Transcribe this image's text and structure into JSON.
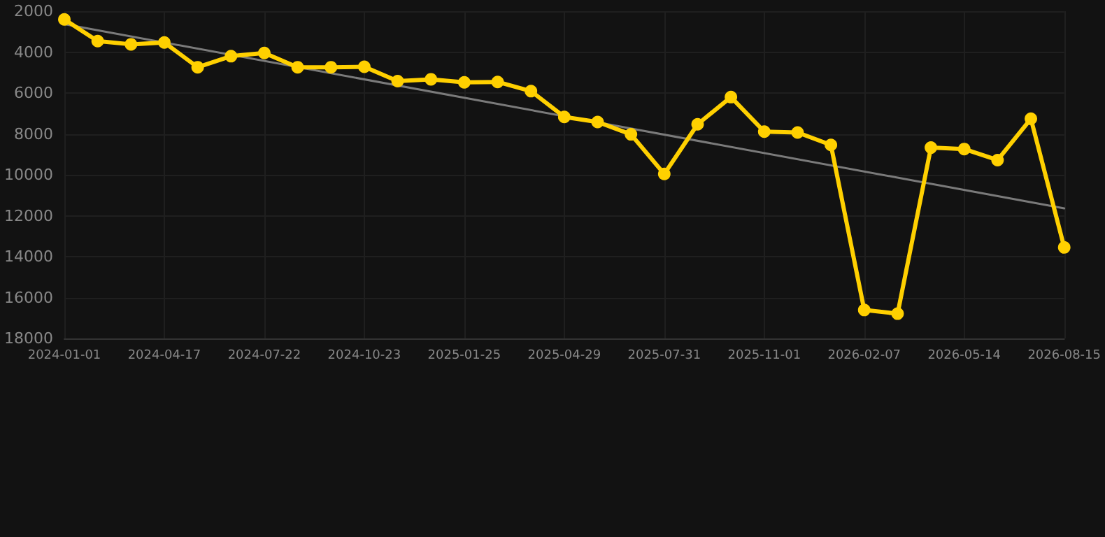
{
  "chart_data": {
    "type": "line",
    "categories": [
      "2024-01-01",
      null,
      null,
      "2024-04-17",
      null,
      null,
      "2024-07-22",
      null,
      null,
      "2024-10-23",
      null,
      null,
      "2025-01-25",
      null,
      null,
      "2025-04-29",
      null,
      null,
      "2025-07-31",
      null,
      null,
      "2025-11-01",
      null,
      null,
      "2026-02-07",
      null,
      null,
      "2026-05-14",
      null,
      null,
      "2026-08-15"
    ],
    "series": [
      {
        "color": "#ffd000",
        "marker": "circle",
        "values": [
          2400,
          3460,
          3620,
          3530,
          4740,
          4200,
          4040,
          4740,
          4740,
          4720,
          5420,
          5330,
          5480,
          5460,
          5910,
          7170,
          7420,
          8020,
          9960,
          7530,
          6200,
          7890,
          7930,
          8540,
          16610,
          16790,
          8670,
          8740,
          9280,
          7260,
          13550
        ]
      },
      {
        "type": "line",
        "color": "#7a7a7a",
        "marker": "none",
        "values": [
          2630,
          null,
          null,
          null,
          null,
          null,
          null,
          null,
          null,
          null,
          null,
          null,
          null,
          null,
          null,
          null,
          null,
          null,
          null,
          null,
          null,
          null,
          null,
          null,
          null,
          null,
          null,
          null,
          null,
          null,
          11640
        ]
      }
    ],
    "ylim": [
      18000,
      2000
    ],
    "yticks": [
      2000,
      4000,
      6000,
      8000,
      10000,
      12000,
      14000,
      16000,
      18000
    ],
    "grid": true
  }
}
